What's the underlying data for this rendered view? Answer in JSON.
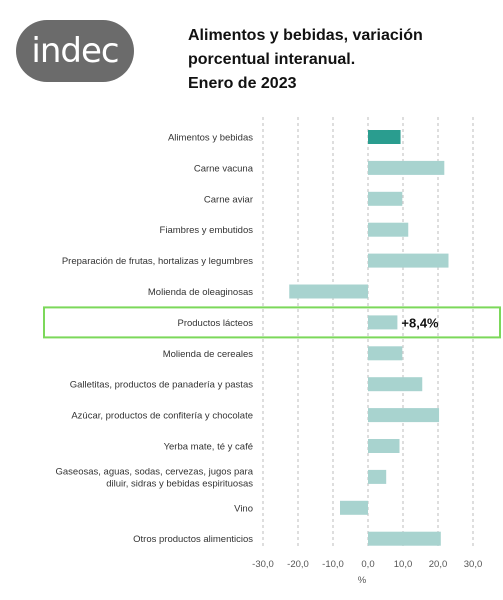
{
  "header": {
    "logo_text": "indec",
    "title_lines": [
      "Alimentos y bebidas, variación",
      "porcentual interanual.",
      "Enero de 2023"
    ]
  },
  "colors": {
    "highlight_bar": "#2a9d8f",
    "bar": "#a8d3cf",
    "box": "#7cd85a",
    "logo_bg": "#6b6b6b"
  },
  "chart_data": {
    "type": "bar",
    "orientation": "horizontal",
    "categories": [
      [
        "Alimentos y bebidas"
      ],
      [
        "Carne vacuna"
      ],
      [
        "Carne aviar"
      ],
      [
        "Fiambres y embutidos"
      ],
      [
        "Preparación de frutas, hortalizas y legumbres"
      ],
      [
        "Molienda de oleaginosas"
      ],
      [
        "Productos lácteos"
      ],
      [
        "Molienda de cereales"
      ],
      [
        "Galletitas, productos de panadería y pastas"
      ],
      [
        "Azúcar, productos de confitería y chocolate"
      ],
      [
        "Yerba mate, té y café"
      ],
      [
        "Gaseosas, aguas, sodas, cervezas, jugos para",
        "diluir, sidras y bebidas espirituosas"
      ],
      [
        "Vino"
      ],
      [
        "Otros productos alimenticios"
      ]
    ],
    "values": [
      9.3,
      21.8,
      9.8,
      11.5,
      23.0,
      -22.5,
      8.4,
      9.8,
      15.5,
      20.3,
      9.0,
      5.2,
      -8.0,
      20.8
    ],
    "highlight_index": 0,
    "boxed_index": 6,
    "annotation": "+8,4%",
    "xlim": [
      -30,
      30
    ],
    "xticks": [
      "-30,0",
      "-20,0",
      "-10,0",
      "0,0",
      "10,0",
      "20,0",
      "30,0"
    ],
    "xlabel": "%",
    "grid": true
  }
}
